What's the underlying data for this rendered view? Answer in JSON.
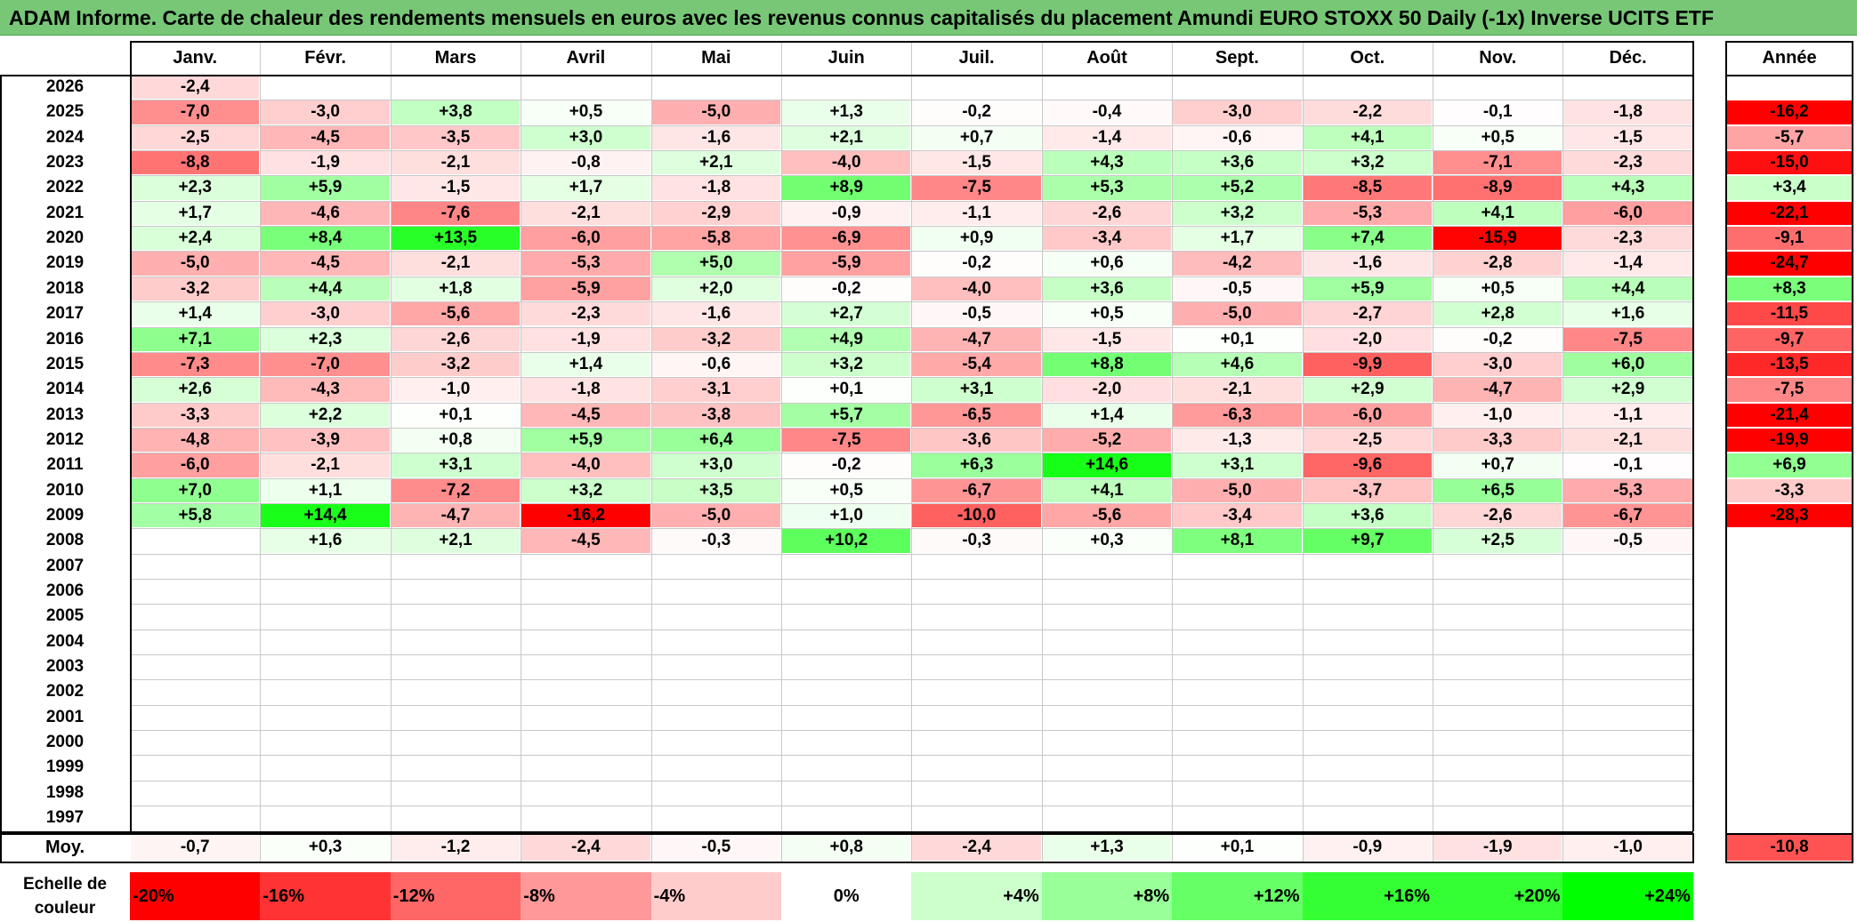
{
  "title": "ADAM Informe. Carte de chaleur des rendements mensuels en euros avec les revenus connus capitalisés du placement Amundi EURO STOXX 50 Daily (-1x) Inverse UCITS ETF",
  "chart_data": {
    "type": "heatmap",
    "columns": [
      "Janv.",
      "Févr.",
      "Mars",
      "Avril",
      "Mai",
      "Juin",
      "Juil.",
      "Août",
      "Sept.",
      "Oct.",
      "Nov.",
      "Déc."
    ],
    "annual_header": "Année",
    "rows": [
      {
        "year": "2026",
        "values": [
          "-2,4",
          "",
          "",
          "",
          "",
          "",
          "",
          "",
          "",
          "",
          "",
          ""
        ],
        "annual": ""
      },
      {
        "year": "2025",
        "values": [
          "-7,0",
          "-3,0",
          "+3,8",
          "+0,5",
          "-5,0",
          "+1,3",
          "-0,2",
          "-0,4",
          "-3,0",
          "-2,2",
          "-0,1",
          "-1,8"
        ],
        "annual": "-16,2"
      },
      {
        "year": "2024",
        "values": [
          "-2,5",
          "-4,5",
          "-3,5",
          "+3,0",
          "-1,6",
          "+2,1",
          "+0,7",
          "-1,4",
          "-0,6",
          "+4,1",
          "+0,5",
          "-1,5"
        ],
        "annual": "-5,7"
      },
      {
        "year": "2023",
        "values": [
          "-8,8",
          "-1,9",
          "-2,1",
          "-0,8",
          "+2,1",
          "-4,0",
          "-1,5",
          "+4,3",
          "+3,6",
          "+3,2",
          "-7,1",
          "-2,3"
        ],
        "annual": "-15,0"
      },
      {
        "year": "2022",
        "values": [
          "+2,3",
          "+5,9",
          "-1,5",
          "+1,7",
          "-1,8",
          "+8,9",
          "-7,5",
          "+5,3",
          "+5,2",
          "-8,5",
          "-8,9",
          "+4,3"
        ],
        "annual": "+3,4"
      },
      {
        "year": "2021",
        "values": [
          "+1,7",
          "-4,6",
          "-7,6",
          "-2,1",
          "-2,9",
          "-0,9",
          "-1,1",
          "-2,6",
          "+3,2",
          "-5,3",
          "+4,1",
          "-6,0"
        ],
        "annual": "-22,1"
      },
      {
        "year": "2020",
        "values": [
          "+2,4",
          "+8,4",
          "+13,5",
          "-6,0",
          "-5,8",
          "-6,9",
          "+0,9",
          "-3,4",
          "+1,7",
          "+7,4",
          "-15,9",
          "-2,3"
        ],
        "annual": "-9,1"
      },
      {
        "year": "2019",
        "values": [
          "-5,0",
          "-4,5",
          "-2,1",
          "-5,3",
          "+5,0",
          "-5,9",
          "-0,2",
          "+0,6",
          "-4,2",
          "-1,6",
          "-2,8",
          "-1,4"
        ],
        "annual": "-24,7"
      },
      {
        "year": "2018",
        "values": [
          "-3,2",
          "+4,4",
          "+1,8",
          "-5,9",
          "+2,0",
          "-0,2",
          "-4,0",
          "+3,6",
          "-0,5",
          "+5,9",
          "+0,5",
          "+4,4"
        ],
        "annual": "+8,3"
      },
      {
        "year": "2017",
        "values": [
          "+1,4",
          "-3,0",
          "-5,6",
          "-2,3",
          "-1,6",
          "+2,7",
          "-0,5",
          "+0,5",
          "-5,0",
          "-2,7",
          "+2,8",
          "+1,6"
        ],
        "annual": "-11,5"
      },
      {
        "year": "2016",
        "values": [
          "+7,1",
          "+2,3",
          "-2,6",
          "-1,9",
          "-3,2",
          "+4,9",
          "-4,7",
          "-1,5",
          "+0,1",
          "-2,0",
          "-0,2",
          "-7,5"
        ],
        "annual": "-9,7"
      },
      {
        "year": "2015",
        "values": [
          "-7,3",
          "-7,0",
          "-3,2",
          "+1,4",
          "-0,6",
          "+3,2",
          "-5,4",
          "+8,8",
          "+4,6",
          "-9,9",
          "-3,0",
          "+6,0"
        ],
        "annual": "-13,5"
      },
      {
        "year": "2014",
        "values": [
          "+2,6",
          "-4,3",
          "-1,0",
          "-1,8",
          "-3,1",
          "+0,1",
          "+3,1",
          "-2,0",
          "-2,1",
          "+2,9",
          "-4,7",
          "+2,9"
        ],
        "annual": "-7,5"
      },
      {
        "year": "2013",
        "values": [
          "-3,3",
          "+2,2",
          "+0,1",
          "-4,5",
          "-3,8",
          "+5,7",
          "-6,5",
          "+1,4",
          "-6,3",
          "-6,0",
          "-1,0",
          "-1,1"
        ],
        "annual": "-21,4"
      },
      {
        "year": "2012",
        "values": [
          "-4,8",
          "-3,9",
          "+0,8",
          "+5,9",
          "+6,4",
          "-7,5",
          "-3,6",
          "-5,2",
          "-1,3",
          "-2,5",
          "-3,3",
          "-2,1"
        ],
        "annual": "-19,9"
      },
      {
        "year": "2011",
        "values": [
          "-6,0",
          "-2,1",
          "+3,1",
          "-4,0",
          "+3,0",
          "-0,2",
          "+6,3",
          "+14,6",
          "+3,1",
          "-9,6",
          "+0,7",
          "-0,1"
        ],
        "annual": "+6,9"
      },
      {
        "year": "2010",
        "values": [
          "+7,0",
          "+1,1",
          "-7,2",
          "+3,2",
          "+3,5",
          "+0,5",
          "-6,7",
          "+4,1",
          "-5,0",
          "-3,7",
          "+6,5",
          "-5,3"
        ],
        "annual": "-3,3"
      },
      {
        "year": "2009",
        "values": [
          "+5,8",
          "+14,4",
          "-4,7",
          "-16,2",
          "-5,0",
          "+1,0",
          "-10,0",
          "-5,6",
          "-3,4",
          "+3,6",
          "-2,6",
          "-6,7"
        ],
        "annual": "-28,3"
      },
      {
        "year": "2008",
        "values": [
          "",
          "+1,6",
          "+2,1",
          "-4,5",
          "-0,3",
          "+10,2",
          "-0,3",
          "+0,3",
          "+8,1",
          "+9,7",
          "+2,5",
          "-0,5"
        ],
        "annual": ""
      },
      {
        "year": "2007",
        "values": [
          "",
          "",
          "",
          "",
          "",
          "",
          "",
          "",
          "",
          "",
          "",
          ""
        ],
        "annual": ""
      },
      {
        "year": "2006",
        "values": [
          "",
          "",
          "",
          "",
          "",
          "",
          "",
          "",
          "",
          "",
          "",
          ""
        ],
        "annual": ""
      },
      {
        "year": "2005",
        "values": [
          "",
          "",
          "",
          "",
          "",
          "",
          "",
          "",
          "",
          "",
          "",
          ""
        ],
        "annual": ""
      },
      {
        "year": "2004",
        "values": [
          "",
          "",
          "",
          "",
          "",
          "",
          "",
          "",
          "",
          "",
          "",
          ""
        ],
        "annual": ""
      },
      {
        "year": "2003",
        "values": [
          "",
          "",
          "",
          "",
          "",
          "",
          "",
          "",
          "",
          "",
          "",
          ""
        ],
        "annual": ""
      },
      {
        "year": "2002",
        "values": [
          "",
          "",
          "",
          "",
          "",
          "",
          "",
          "",
          "",
          "",
          "",
          ""
        ],
        "annual": ""
      },
      {
        "year": "2001",
        "values": [
          "",
          "",
          "",
          "",
          "",
          "",
          "",
          "",
          "",
          "",
          "",
          ""
        ],
        "annual": ""
      },
      {
        "year": "2000",
        "values": [
          "",
          "",
          "",
          "",
          "",
          "",
          "",
          "",
          "",
          "",
          "",
          ""
        ],
        "annual": ""
      },
      {
        "year": "1999",
        "values": [
          "",
          "",
          "",
          "",
          "",
          "",
          "",
          "",
          "",
          "",
          "",
          ""
        ],
        "annual": ""
      },
      {
        "year": "1998",
        "values": [
          "",
          "",
          "",
          "",
          "",
          "",
          "",
          "",
          "",
          "",
          "",
          ""
        ],
        "annual": ""
      },
      {
        "year": "1997",
        "values": [
          "",
          "",
          "",
          "",
          "",
          "",
          "",
          "",
          "",
          "",
          "",
          ""
        ],
        "annual": ""
      }
    ],
    "average": {
      "label": "Moy.",
      "values": [
        "-0,7",
        "+0,3",
        "-1,2",
        "-2,4",
        "-0,5",
        "+0,8",
        "-2,4",
        "+1,3",
        "+0,1",
        "-0,9",
        "-1,9",
        "-1,0"
      ],
      "annual": "-10,8"
    },
    "scale": {
      "label_line1": "Echelle de",
      "label_line2": "couleur",
      "items": [
        {
          "label": "-20%",
          "color": "#ff0000"
        },
        {
          "label": "-16%",
          "color": "#ff3333"
        },
        {
          "label": "-12%",
          "color": "#ff6666"
        },
        {
          "label": "-8%",
          "color": "#ff9999"
        },
        {
          "label": "-4%",
          "color": "#ffcccc"
        },
        {
          "label": "0%",
          "color": "#ffffff"
        },
        {
          "label": "+4%",
          "color": "#ccffcc"
        },
        {
          "label": "+8%",
          "color": "#99ff99"
        },
        {
          "label": "+12%",
          "color": "#66ff66"
        },
        {
          "label": "+16%",
          "color": "#33ff33"
        },
        {
          "label": "+20%",
          "color": "#33ff33"
        },
        {
          "label": "+24%",
          "color": "#00ff00"
        }
      ]
    }
  }
}
